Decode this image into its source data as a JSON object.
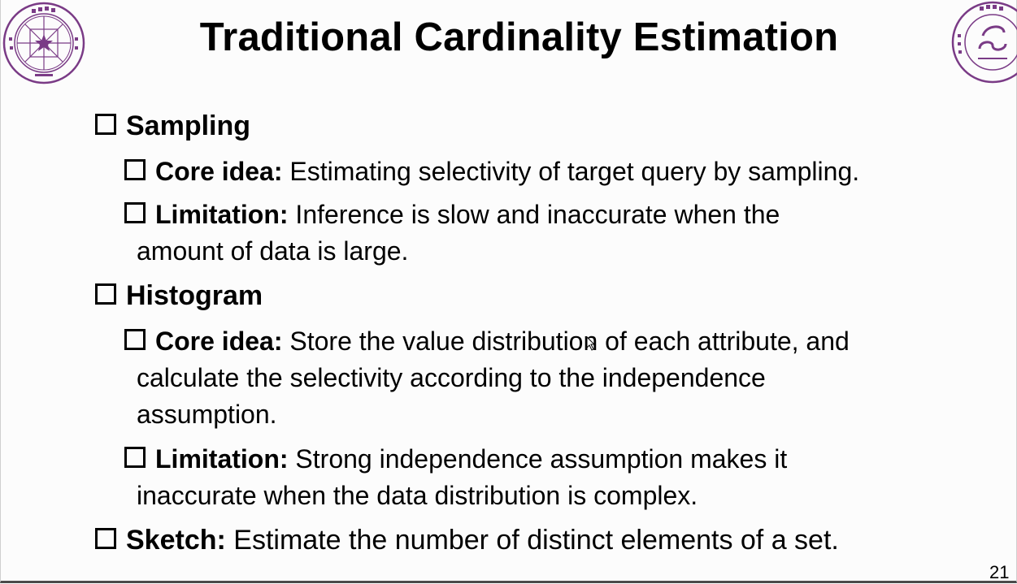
{
  "slide": {
    "title": "Traditional Cardinality Estimation",
    "page_number": "21",
    "logos": {
      "left": "tsinghua-university-seal",
      "right": "tsinghua-cs-seal",
      "accent_color": "#7a3b86"
    },
    "items": {
      "sampling": {
        "heading": "Sampling",
        "core_idea": {
          "label": "Core idea:",
          "text": "Estimating selectivity of target query by sampling."
        },
        "limitation": {
          "label": "Limitation:",
          "line1": "Inference is slow and inaccurate when the",
          "line2": "amount of data is large."
        }
      },
      "histogram": {
        "heading": "Histogram",
        "core_idea": {
          "label": "Core idea:",
          "line1": "Store the value distribution of each attribute, and",
          "line2": "calculate the selectivity according to the independence",
          "line3": "assumption."
        },
        "limitation": {
          "label": "Limitation:",
          "line1": "Strong independence assumption makes it",
          "line2": "inaccurate when the data distribution is complex."
        }
      },
      "sketch": {
        "label": "Sketch:",
        "text": "Estimate the number of distinct elements of a set."
      }
    }
  }
}
